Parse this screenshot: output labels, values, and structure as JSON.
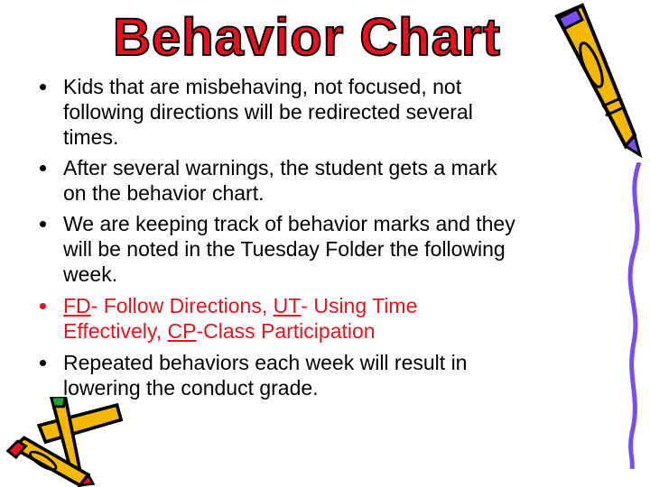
{
  "slide": {
    "title": "Behavior Chart",
    "bullets": [
      {
        "lines": [
          "Kids that are misbehaving, not focused, not",
          "following directions will be redirected several",
          "times."
        ]
      },
      {
        "lines": [
          "After several warnings, the student gets a mark",
          "on the behavior chart."
        ]
      },
      {
        "lines": [
          "We are keeping track of behavior marks and they",
          "will be noted in the Tuesday Folder the following",
          "week."
        ]
      },
      {
        "color": "#e8121c",
        "line1": {
          "a": "FD",
          "b": "- Follow Directions, ",
          "c": "UT",
          "d": "- Using Time"
        },
        "line2": {
          "a": "Effectively, ",
          "b": "CP",
          "c": "-Class Participation"
        }
      },
      {
        "lines": [
          "Repeated behaviors each week will result in",
          "lowering the conduct grade."
        ]
      }
    ],
    "decorations": [
      "pencil-icon",
      "crayons-icon",
      "wavy-line"
    ],
    "colors": {
      "title": "#e8121c",
      "accent_purple": "#7b4cf0",
      "pencil_yellow": "#f5b800"
    }
  }
}
